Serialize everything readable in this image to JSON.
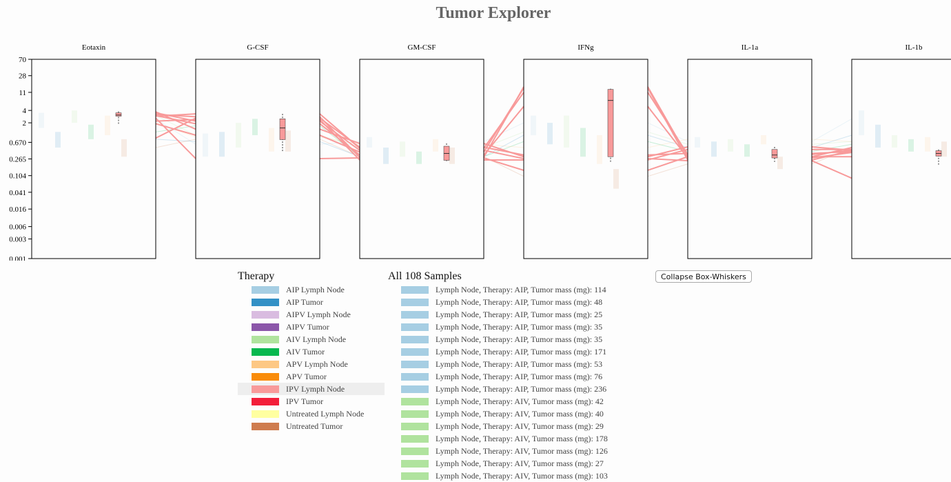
{
  "page": {
    "title": "Tumor Explorer"
  },
  "controls": {
    "collapse_label": "Collapse Box-Whiskers"
  },
  "colors": {
    "AIP Lymph Node": "#a6cee3",
    "AIP Tumor": "#3391c6",
    "AIPV Lymph Node": "#d9bce0",
    "AIPV Tumor": "#8b56a9",
    "AIV Lymph Node": "#b0e39e",
    "AIV Tumor": "#08b84f",
    "APV Lymph Node": "#fdc884",
    "APV Tumor": "#f98c0a",
    "IPV Lymph Node": "#f89a9a",
    "IPV Tumor": "#f31e3a",
    "Untreated Lymph Node": "#ffffa0",
    "Untreated Tumor": "#cf7c4e"
  },
  "legend": {
    "therapy_title": "Therapy",
    "therapy_items": [
      {
        "label": "AIP Lymph Node",
        "color": "#a6cee3"
      },
      {
        "label": "AIP Tumor",
        "color": "#3391c6"
      },
      {
        "label": "AIPV Lymph Node",
        "color": "#d9bce0"
      },
      {
        "label": "AIPV Tumor",
        "color": "#8b56a9"
      },
      {
        "label": "AIV Lymph Node",
        "color": "#b0e39e"
      },
      {
        "label": "AIV Tumor",
        "color": "#08b84f"
      },
      {
        "label": "APV Lymph Node",
        "color": "#fdc884"
      },
      {
        "label": "APV Tumor",
        "color": "#f98c0a"
      },
      {
        "label": "IPV Lymph Node",
        "color": "#f89a9a",
        "highlighted": true
      },
      {
        "label": "IPV Tumor",
        "color": "#f31e3a"
      },
      {
        "label": "Untreated Lymph Node",
        "color": "#ffffa0"
      },
      {
        "label": "Untreated Tumor",
        "color": "#cf7c4e"
      }
    ],
    "samples_title": "All 108 Samples",
    "samples": [
      {
        "label": "Lymph Node, Therapy: AIP, Tumor mass (mg): 114",
        "color": "#a6cee3"
      },
      {
        "label": "Lymph Node, Therapy: AIP, Tumor mass (mg): 48",
        "color": "#a6cee3"
      },
      {
        "label": "Lymph Node, Therapy: AIP, Tumor mass (mg): 25",
        "color": "#a6cee3"
      },
      {
        "label": "Lymph Node, Therapy: AIP, Tumor mass (mg): 35",
        "color": "#a6cee3"
      },
      {
        "label": "Lymph Node, Therapy: AIP, Tumor mass (mg): 35",
        "color": "#a6cee3"
      },
      {
        "label": "Lymph Node, Therapy: AIP, Tumor mass (mg): 171",
        "color": "#a6cee3"
      },
      {
        "label": "Lymph Node, Therapy: AIP, Tumor mass (mg): 53",
        "color": "#a6cee3"
      },
      {
        "label": "Lymph Node, Therapy: AIP, Tumor mass (mg): 76",
        "color": "#a6cee3"
      },
      {
        "label": "Lymph Node, Therapy: AIP, Tumor mass (mg): 236",
        "color": "#a6cee3"
      },
      {
        "label": "Lymph Node, Therapy: AIV, Tumor mass (mg): 42",
        "color": "#b0e39e"
      },
      {
        "label": "Lymph Node, Therapy: AIV, Tumor mass (mg): 40",
        "color": "#b0e39e"
      },
      {
        "label": "Lymph Node, Therapy: AIV, Tumor mass (mg): 29",
        "color": "#b0e39e"
      },
      {
        "label": "Lymph Node, Therapy: AIV, Tumor mass (mg): 178",
        "color": "#b0e39e"
      },
      {
        "label": "Lymph Node, Therapy: AIV, Tumor mass (mg): 126",
        "color": "#b0e39e"
      },
      {
        "label": "Lymph Node, Therapy: AIV, Tumor mass (mg): 27",
        "color": "#b0e39e"
      },
      {
        "label": "Lymph Node, Therapy: AIV, Tumor mass (mg): 103",
        "color": "#b0e39e"
      }
    ]
  },
  "chart_data": {
    "type": "box-whisker parallel coordinates",
    "scale": "log",
    "ylim": [
      0.001,
      70
    ],
    "y_ticks": [
      "70",
      "28",
      "11",
      "4",
      "2",
      "0.670",
      "0.265",
      "0.104",
      "0.041",
      "0.016",
      "0.006",
      "0.003",
      "0.001"
    ],
    "y_tick_values": [
      70,
      28,
      11,
      4,
      2,
      0.67,
      0.265,
      0.104,
      0.041,
      0.016,
      0.006,
      0.003,
      0.001
    ],
    "axes": [
      "Eotaxin",
      "G-CSF",
      "GM-CSF",
      "IFNg",
      "IL-1a",
      "IL-1b"
    ],
    "highlighted_group": "IPV Lymph Node",
    "highlighted_box": [
      {
        "axis": "Eotaxin",
        "min": 1.75,
        "q1": 2.9,
        "median": 3.1,
        "q3": 3.5,
        "max": 3.8
      },
      {
        "axis": "G-CSF",
        "min": 0.4,
        "q1": 0.78,
        "median": 1.5,
        "q3": 2.5,
        "max": 3.3
      },
      {
        "axis": "GM-CSF",
        "min": 0.235,
        "q1": 0.245,
        "median": 0.36,
        "q3": 0.54,
        "max": 0.63
      },
      {
        "axis": "IFNg",
        "min": 0.21,
        "q1": 0.3,
        "median": 7,
        "q3": 13,
        "max": 13.5
      },
      {
        "axis": "IL-1a",
        "min": 0.225,
        "q1": 0.28,
        "median": 0.33,
        "q3": 0.45,
        "max": 0.52
      },
      {
        "axis": "IL-1b",
        "min": 0.18,
        "q1": 0.31,
        "median": 0.36,
        "q3": 0.42,
        "max": 0.45
      }
    ],
    "highlighted_samples": [
      [
        3.2,
        2.8,
        0.29,
        15,
        0.3,
        0.5
      ],
      [
        2.9,
        3.3,
        0.48,
        11,
        0.34,
        0.43
      ],
      [
        3.0,
        1.9,
        0.33,
        5,
        0.28,
        0.38
      ],
      [
        2.6,
        0.27,
        0.28,
        0.14,
        0.3,
        0.3
      ],
      [
        3.5,
        2.2,
        0.43,
        0.27,
        0.24,
        0.09
      ],
      [
        3.7,
        1.4,
        0.63,
        0.3,
        0.52,
        0.43
      ],
      [
        2.2,
        2.4,
        0.25,
        0.25,
        0.45,
        0.45
      ],
      [
        0.85,
        2.6,
        0.51,
        0.33,
        0.36,
        0.4
      ],
      [
        1.9,
        1.0,
        0.39,
        14,
        0.25,
        0.42
      ]
    ],
    "background_groups": [
      {
        "group": "AIP Lymph Node",
        "boxes": [
          [
            1.5,
            2.5,
            3.5
          ],
          [
            0.3,
            0.6,
            1.1
          ],
          [
            0.5,
            0.7,
            0.9
          ],
          [
            1.0,
            2.0,
            3.0
          ],
          [
            0.5,
            0.7,
            0.9
          ],
          [
            1.0,
            2.5,
            4.0
          ]
        ]
      },
      {
        "group": "AIP Tumor",
        "boxes": [
          [
            0.5,
            0.8,
            1.2
          ],
          [
            0.3,
            0.7,
            1.2
          ],
          [
            0.2,
            0.3,
            0.5
          ],
          [
            0.6,
            1.0,
            2.0
          ],
          [
            0.3,
            0.5,
            0.7
          ],
          [
            0.5,
            1.0,
            1.8
          ]
        ]
      },
      {
        "group": "AIV Lymph Node",
        "boxes": [
          [
            2.0,
            3.0,
            4.0
          ],
          [
            0.5,
            1.0,
            2.0
          ],
          [
            0.3,
            0.5,
            0.7
          ],
          [
            0.5,
            1.2,
            3.0
          ],
          [
            0.4,
            0.6,
            0.8
          ],
          [
            0.5,
            0.7,
            1.0
          ]
        ]
      },
      {
        "group": "AIV Tumor",
        "boxes": [
          [
            0.8,
            1.2,
            1.8
          ],
          [
            1.0,
            1.7,
            2.5
          ],
          [
            0.2,
            0.3,
            0.4
          ],
          [
            0.3,
            0.7,
            1.5
          ],
          [
            0.3,
            0.4,
            0.6
          ],
          [
            0.4,
            0.6,
            0.8
          ]
        ]
      },
      {
        "group": "APV Lymph Node",
        "boxes": [
          [
            1.0,
            2.0,
            3.0
          ],
          [
            0.4,
            0.9,
            1.5
          ],
          [
            0.4,
            0.6,
            0.8
          ],
          [
            0.2,
            0.5,
            1.0
          ],
          [
            0.6,
            0.8,
            1.0
          ],
          [
            0.4,
            0.7,
            0.9
          ]
        ]
      },
      {
        "group": "Untreated Tumor",
        "boxes": [
          [
            0.3,
            0.5,
            0.8
          ],
          [
            0.4,
            0.8,
            1.3
          ],
          [
            0.2,
            0.3,
            0.5
          ],
          [
            0.05,
            0.1,
            0.15
          ],
          [
            0.15,
            0.2,
            0.3
          ],
          [
            0.3,
            0.5,
            0.7
          ]
        ]
      }
    ]
  }
}
